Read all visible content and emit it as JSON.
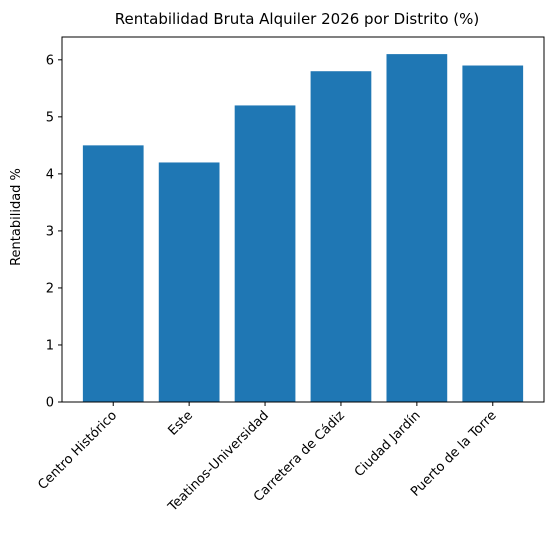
{
  "chart_data": {
    "type": "bar",
    "title": "Rentabilidad Bruta Alquiler 2026 por Distrito (%)",
    "xlabel": "",
    "ylabel": "Rentabilidad %",
    "categories": [
      "Centro Histórico",
      "Este",
      "Teatinos-Universidad",
      "Carretera de Cádiz",
      "Ciudad Jardín",
      "Puerto de la Torre"
    ],
    "values": [
      4.5,
      4.2,
      5.2,
      5.8,
      6.1,
      5.9
    ],
    "ylim": [
      0,
      6.4
    ],
    "yticks": [
      0,
      1,
      2,
      3,
      4,
      5,
      6
    ],
    "bar_color": "#1f77b4",
    "grid": false,
    "legend": null
  }
}
